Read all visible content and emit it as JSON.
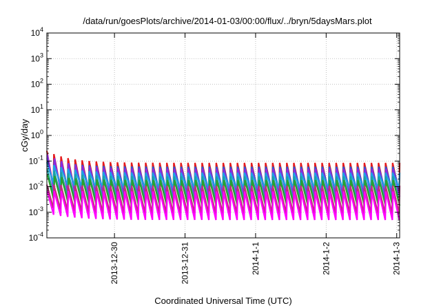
{
  "chart_data": {
    "type": "line",
    "title": "/data/run/goesPlots/archive/2014-01-03/00:00/flux/../bryn/5daysMars.plot",
    "xlabel": "Coordinated Universal Time (UTC)",
    "ylabel": "cGy/day",
    "yscale": "log",
    "ylim": [
      0.0001,
      10000
    ],
    "y_ticks": [
      {
        "value": 0.0001,
        "base": "10",
        "exp": "-4"
      },
      {
        "value": 0.001,
        "base": "10",
        "exp": "-3"
      },
      {
        "value": 0.01,
        "base": "10",
        "exp": "-2"
      },
      {
        "value": 0.1,
        "base": "10",
        "exp": "-1"
      },
      {
        "value": 1,
        "base": "10",
        "exp": "0"
      },
      {
        "value": 10,
        "base": "10",
        "exp": "1"
      },
      {
        "value": 100,
        "base": "10",
        "exp": "2"
      },
      {
        "value": 1000,
        "base": "10",
        "exp": "3"
      },
      {
        "value": 10000,
        "base": "10",
        "exp": "4"
      }
    ],
    "xlim": [
      "2013-12-29 01:00",
      "2014-01-03 01:00"
    ],
    "x_ticks": [
      "2013-12-30",
      "2013-12-31",
      "2014-1-1",
      "2014-1-2",
      "2014-1-3"
    ],
    "grid": true,
    "legend": "none",
    "sawtooth_period_hours": 2.4,
    "series": [
      {
        "color": "#e41a1c",
        "start_peak": 0.25,
        "peak": 0.085,
        "trough": 0.006
      },
      {
        "color": "#1f5fd6",
        "start_peak": 0.13,
        "peak": 0.06,
        "trough": 0.0065
      },
      {
        "color": "#8a2be2",
        "start_peak": 0.18,
        "peak": 0.05,
        "trough": 0.004
      },
      {
        "color": "#1ea0e6",
        "start_peak": 0.09,
        "peak": 0.035,
        "trough": 0.0085
      },
      {
        "color": "#1aa3a3",
        "start_peak": 0.05,
        "peak": 0.025,
        "trough": 0.0028
      },
      {
        "color": "#2ca02c",
        "start_peak": 0.03,
        "peak": 0.018,
        "trough": 0.0018
      },
      {
        "color": "#c0307a",
        "start_peak": 0.012,
        "peak": 0.011,
        "trough": 0.0009
      },
      {
        "color": "#ff00ff",
        "start_peak": 0.007,
        "peak": 0.0065,
        "trough": 0.0005
      }
    ]
  }
}
